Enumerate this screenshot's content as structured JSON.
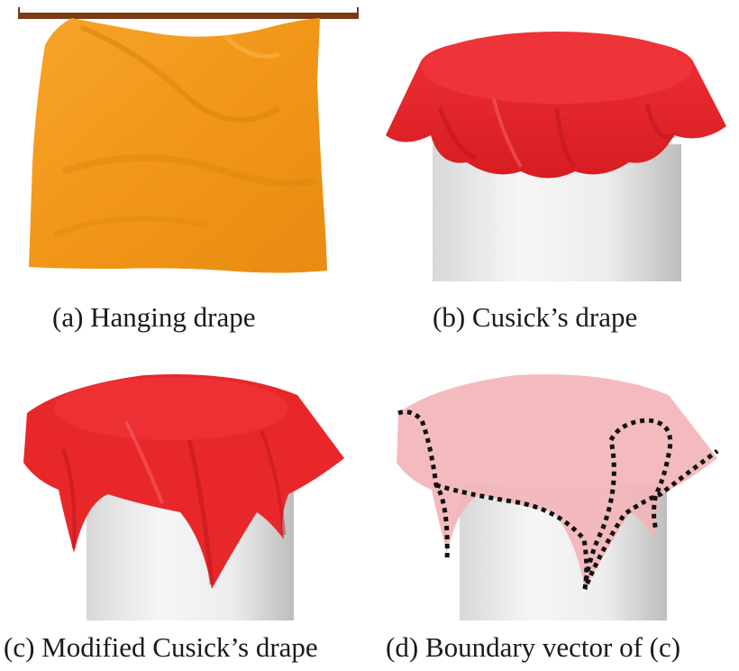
{
  "figure": {
    "panels": [
      {
        "id": "a",
        "caption": "(a) Hanging drape",
        "fabric_color": "#F39A1E"
      },
      {
        "id": "b",
        "caption": "(b) Cusick’s drape",
        "fabric_color": "#E8272B"
      },
      {
        "id": "c",
        "caption": "(c) Modified Cusick’s drape",
        "fabric_color": "#E8272B"
      },
      {
        "id": "d",
        "caption": "(d) Boundary vector of (c)",
        "fabric_color": "#F3B4B8",
        "boundary_color": "#111111"
      }
    ],
    "colors": {
      "rod": "#7A3A17",
      "pedestal_light": "#F4F4F4",
      "pedestal_dark": "#C9C9C9"
    }
  }
}
